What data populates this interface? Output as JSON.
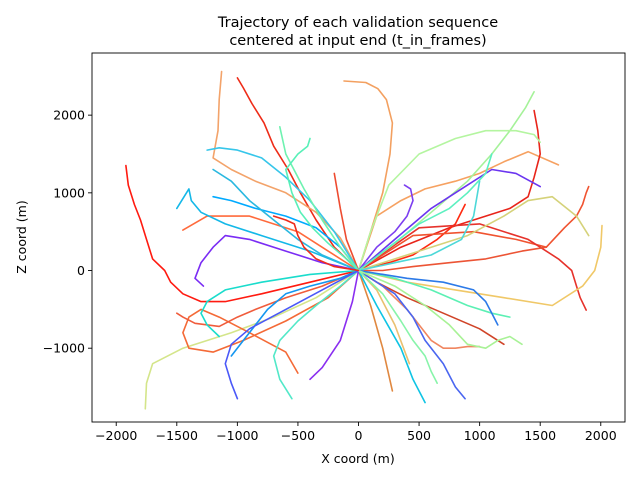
{
  "chart_data": {
    "type": "line",
    "title_lines": [
      "Trajectory of each validation sequence",
      "centered at input end (t_in_frames)"
    ],
    "xlabel": "X coord (m)",
    "ylabel": "Z coord (m)",
    "xlim": [
      -2200,
      2200
    ],
    "ylim": [
      -1950,
      2800
    ],
    "xticks": [
      -2000,
      -1500,
      -1000,
      -500,
      0,
      500,
      1000,
      1500,
      2000
    ],
    "yticks": [
      -1000,
      0,
      1000,
      2000
    ],
    "grid": false,
    "legend": "none",
    "series": [
      {
        "color": "#ff1a10",
        "x": [
          0,
          -400,
          -800,
          -1100,
          -1300,
          -1450,
          -1550,
          -1600,
          -1700,
          -1750,
          -1800,
          -1850,
          -1900,
          -1920
        ],
        "y": [
          0,
          -150,
          -300,
          -400,
          -400,
          -300,
          -150,
          0,
          150,
          400,
          650,
          850,
          1100,
          1350
        ]
      },
      {
        "color": "#ee2c18",
        "x": [
          0,
          -200,
          -350,
          -480,
          -580,
          -700,
          -780,
          -880,
          -950,
          -1000
        ],
        "y": [
          0,
          300,
          650,
          1000,
          1300,
          1600,
          1900,
          2150,
          2350,
          2480
        ]
      },
      {
        "color": "#f3a36a",
        "x": [
          0,
          -150,
          -350,
          -600,
          -850,
          -1050,
          -1200,
          -1160,
          -1150,
          -1130
        ],
        "y": [
          0,
          420,
          750,
          1000,
          1150,
          1300,
          1450,
          1800,
          2200,
          2560
        ]
      },
      {
        "color": "#f6a161",
        "x": [
          0,
          150,
          350,
          550,
          800,
          1000,
          1200,
          1400,
          1650
        ],
        "y": [
          0,
          700,
          900,
          1050,
          1150,
          1250,
          1400,
          1530,
          1360
        ]
      },
      {
        "color": "#f3a060",
        "x": [
          0,
          100,
          200,
          260,
          280,
          230,
          160,
          60,
          -120
        ],
        "y": [
          0,
          500,
          1000,
          1500,
          1900,
          2200,
          2340,
          2420,
          2440
        ]
      },
      {
        "color": "#e8241a",
        "x": [
          0,
          350,
          750,
          1050,
          1250,
          1400,
          1450,
          1500,
          1480,
          1450
        ],
        "y": [
          0,
          300,
          550,
          700,
          800,
          950,
          1200,
          1500,
          1800,
          2060
        ]
      },
      {
        "color": "#ff2a10",
        "x": [
          0,
          250,
          450,
          650,
          800,
          880
        ],
        "y": [
          0,
          100,
          200,
          400,
          600,
          850
        ]
      },
      {
        "color": "#f05330",
        "x": [
          0,
          450,
          950,
          1300,
          1550,
          1700,
          1800,
          1850,
          1880,
          1900
        ],
        "y": [
          0,
          450,
          500,
          400,
          300,
          550,
          700,
          850,
          1000,
          1080
        ]
      },
      {
        "color": "#e6322b",
        "x": [
          0,
          500,
          1000,
          1400,
          1650,
          1760,
          1800,
          1830,
          1880
        ],
        "y": [
          0,
          550,
          600,
          400,
          150,
          0,
          -200,
          -350,
          -510
        ]
      },
      {
        "color": "#ec5435",
        "x": [
          0,
          200,
          450,
          750,
          1050,
          1350,
          1550
        ],
        "y": [
          0,
          0,
          50,
          100,
          150,
          250,
          300
        ]
      },
      {
        "color": "#f0c868",
        "x": [
          0,
          400,
          800,
          1200,
          1600,
          1850,
          1950,
          2000,
          2010
        ],
        "y": [
          0,
          -150,
          -250,
          -350,
          -450,
          -200,
          0,
          300,
          580
        ]
      },
      {
        "color": "#d5d27a",
        "x": [
          0,
          500,
          900,
          1200,
          1400,
          1600,
          1800,
          1900
        ],
        "y": [
          0,
          250,
          450,
          700,
          900,
          950,
          700,
          450
        ]
      },
      {
        "color": "#a5f299",
        "x": [
          0,
          300,
          600,
          900,
          1100,
          1250,
          1380,
          1450
        ],
        "y": [
          0,
          350,
          750,
          1150,
          1500,
          1800,
          2100,
          2300
        ]
      },
      {
        "color": "#b4f5a0",
        "x": [
          0,
          100,
          250,
          500,
          800,
          1050,
          1300,
          1450,
          1500
        ],
        "y": [
          0,
          500,
          1100,
          1500,
          1700,
          1800,
          1800,
          1750,
          1650
        ]
      },
      {
        "color": "#d4e58a",
        "x": [
          0,
          -350,
          -700,
          -1050,
          -1450,
          -1700,
          -1750,
          -1760
        ],
        "y": [
          0,
          -350,
          -600,
          -800,
          -1000,
          -1200,
          -1450,
          -1780
        ]
      },
      {
        "color": "#e08840",
        "x": [
          0,
          100,
          200,
          280
        ],
        "y": [
          0,
          -450,
          -1000,
          -1550
        ]
      },
      {
        "color": "#ff6a3c",
        "x": [
          0,
          -500,
          -900,
          -1250,
          -1450
        ],
        "y": [
          0,
          500,
          700,
          700,
          520
        ]
      },
      {
        "color": "#f46a37",
        "x": [
          0,
          -250,
          -600,
          -950,
          -1200,
          -1400,
          -1450,
          -1400,
          -1300,
          -1150,
          -900,
          -600,
          -500
        ],
        "y": [
          0,
          -350,
          -650,
          -900,
          -1050,
          -1000,
          -800,
          -600,
          -500,
          -600,
          -800,
          -1050,
          -1320
        ]
      },
      {
        "color": "#f05c3c",
        "x": [
          0,
          -300,
          -600,
          -850,
          -1000,
          -1150,
          -1350,
          -1450,
          -1500
        ],
        "y": [
          0,
          -200,
          -350,
          -500,
          -600,
          -720,
          -680,
          -600,
          -550
        ]
      },
      {
        "color": "#ee4b30",
        "x": [
          0,
          -100,
          -150,
          -200
        ],
        "y": [
          0,
          400,
          800,
          1250
        ]
      },
      {
        "color": "#d04428",
        "x": [
          0,
          150,
          400,
          700,
          1000,
          1200
        ],
        "y": [
          0,
          -150,
          -350,
          -550,
          -750,
          -950
        ]
      },
      {
        "color": "#f08660",
        "x": [
          0,
          200,
          400,
          500,
          600,
          700,
          800,
          900,
          950,
          1000
        ],
        "y": [
          0,
          -200,
          -500,
          -700,
          -900,
          -1000,
          -1000,
          -980,
          -980,
          -980
        ]
      },
      {
        "color": "#eac070",
        "x": [
          0,
          150,
          300,
          420
        ],
        "y": [
          0,
          -250,
          -700,
          -1200
        ]
      },
      {
        "color": "#4a66f0",
        "x": [
          0,
          300,
          450,
          550,
          700,
          800,
          880
        ],
        "y": [
          0,
          -300,
          -600,
          -900,
          -1200,
          -1500,
          -1650
        ]
      },
      {
        "color": "#1496f0",
        "x": [
          0,
          -150,
          -400,
          -600,
          -750,
          -850,
          -950,
          -1050
        ],
        "y": [
          0,
          -100,
          -200,
          -300,
          -500,
          -700,
          -900,
          -1100
        ]
      },
      {
        "color": "#00aaff",
        "x": [
          0,
          -150,
          -350,
          -600,
          -850,
          -1050,
          -1200
        ],
        "y": [
          0,
          300,
          550,
          700,
          800,
          900,
          950
        ]
      },
      {
        "color": "#14b8e8",
        "x": [
          0,
          -400,
          -800,
          -1100,
          -1300,
          -1380,
          -1400,
          -1500
        ],
        "y": [
          0,
          250,
          450,
          600,
          750,
          900,
          1050,
          800
        ]
      },
      {
        "color": "#1adccc",
        "x": [
          0,
          -400,
          -800,
          -1100,
          -1250,
          -1300,
          -1250,
          -1150
        ],
        "y": [
          0,
          -50,
          -150,
          -250,
          -400,
          -550,
          -700,
          -850
        ]
      },
      {
        "color": "#2ab8e0",
        "x": [
          0,
          -300,
          -500,
          -700,
          -900,
          -1050,
          -1200
        ],
        "y": [
          0,
          200,
          400,
          650,
          900,
          1150,
          1300
        ]
      },
      {
        "color": "#36c6ea",
        "x": [
          0,
          -200,
          -400,
          -600,
          -800,
          -1000,
          -1150,
          -1250
        ],
        "y": [
          0,
          500,
          900,
          1200,
          1450,
          1550,
          1580,
          1550
        ]
      },
      {
        "color": "#52e8c8",
        "x": [
          0,
          -150,
          -350,
          -500,
          -650,
          -700,
          -650,
          -550
        ],
        "y": [
          0,
          -200,
          -450,
          -650,
          -900,
          -1100,
          -1400,
          -1650
        ]
      },
      {
        "color": "#0fc4e4",
        "x": [
          0,
          150,
          350,
          450,
          550
        ],
        "y": [
          0,
          -450,
          -1000,
          -1400,
          -1700
        ]
      },
      {
        "color": "#4a58f8",
        "x": [
          0,
          -300,
          -600,
          -900,
          -1050,
          -1100,
          -1050,
          -1000
        ],
        "y": [
          0,
          -250,
          -500,
          -750,
          -950,
          -1200,
          -1450,
          -1650
        ]
      },
      {
        "color": "#7a2cf4",
        "x": [
          0,
          -300,
          -600,
          -900,
          -1100,
          -1200,
          -1300,
          -1350,
          -1280
        ],
        "y": [
          0,
          100,
          250,
          400,
          450,
          300,
          100,
          -100,
          -200
        ]
      },
      {
        "color": "#6b35f0",
        "x": [
          0,
          300,
          600,
          900,
          1100,
          1300,
          1500
        ],
        "y": [
          0,
          400,
          800,
          1100,
          1300,
          1250,
          1080
        ]
      },
      {
        "color": "#7c3ef0",
        "x": [
          0,
          150,
          300,
          400,
          450,
          430,
          380
        ],
        "y": [
          0,
          300,
          500,
          700,
          900,
          1050,
          1100
        ]
      },
      {
        "color": "#8a2ef0",
        "x": [
          0,
          -50,
          -150,
          -300,
          -400
        ],
        "y": [
          0,
          -400,
          -900,
          -1250,
          -1400
        ]
      },
      {
        "color": "#5cf0b4",
        "x": [
          0,
          300,
          600,
          900,
          1100,
          1250
        ],
        "y": [
          0,
          -100,
          -250,
          -450,
          -550,
          -600
        ]
      },
      {
        "color": "#4dd8d8",
        "x": [
          0,
          300,
          600,
          850,
          950,
          1000
        ],
        "y": [
          0,
          100,
          200,
          400,
          700,
          1150
        ]
      },
      {
        "color": "#5cf0c0",
        "x": [
          0,
          250,
          500,
          750,
          900,
          1050,
          1100
        ],
        "y": [
          0,
          300,
          600,
          800,
          1000,
          1250,
          1500
        ]
      },
      {
        "color": "#6ef2b0",
        "x": [
          0,
          -150,
          -300,
          -450,
          -600,
          -650
        ],
        "y": [
          0,
          300,
          650,
          1050,
          1500,
          1850
        ]
      },
      {
        "color": "#58f0b8",
        "x": [
          0,
          -100,
          -250,
          -380,
          -480,
          -550,
          -600,
          -500,
          -420,
          -400
        ],
        "y": [
          0,
          150,
          350,
          550,
          750,
          1000,
          1300,
          1500,
          1600,
          1700
        ]
      },
      {
        "color": "#2c7ae8",
        "x": [
          0,
          400,
          700,
          950,
          1050,
          1100,
          1150
        ],
        "y": [
          0,
          -100,
          -150,
          -250,
          -400,
          -550,
          -700
        ]
      },
      {
        "color": "#88f4aa",
        "x": [
          0,
          200,
          350,
          450,
          550,
          600,
          650
        ],
        "y": [
          0,
          -300,
          -650,
          -900,
          -1100,
          -1300,
          -1450
        ]
      },
      {
        "color": "#a8f296",
        "x": [
          0,
          300,
          550,
          750,
          900,
          1050,
          1150,
          1250,
          1350
        ],
        "y": [
          0,
          -200,
          -450,
          -700,
          -950,
          -1000,
          -900,
          -850,
          -950
        ]
      },
      {
        "color": "#ee2c1c",
        "x": [
          0,
          -200,
          -350,
          -450,
          -500,
          -530,
          -600,
          -700
        ],
        "y": [
          0,
          50,
          150,
          300,
          450,
          600,
          650,
          700
        ]
      }
    ]
  }
}
